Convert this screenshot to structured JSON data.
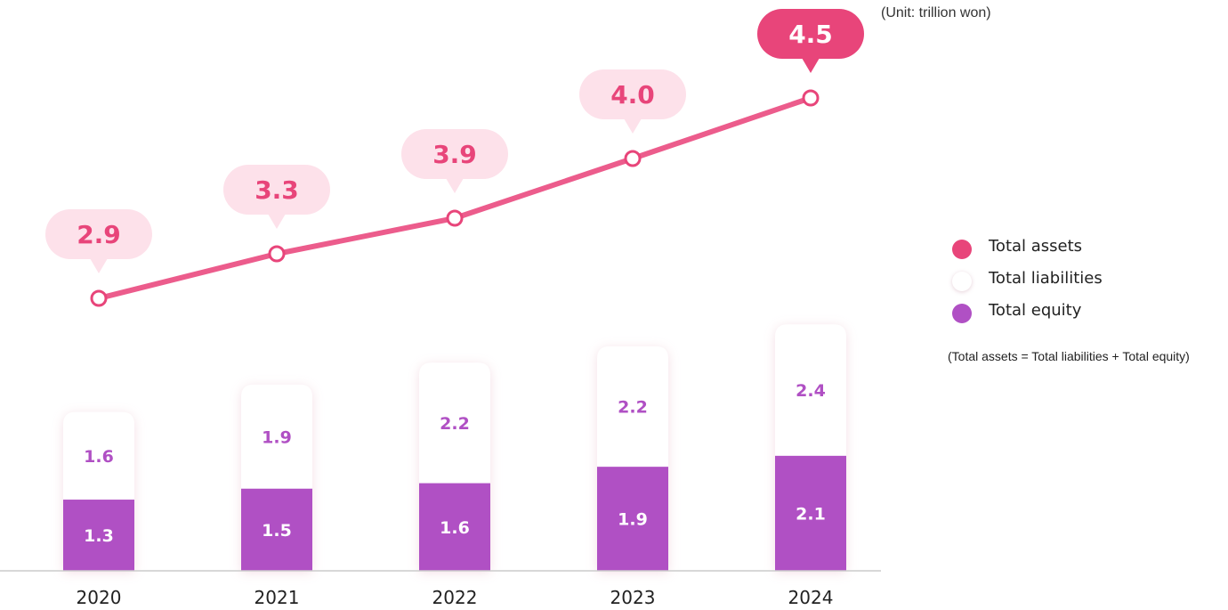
{
  "unit_note": "(Unit: trillion won)",
  "colors": {
    "assets": "#e8457a",
    "assets_line": "#ec5c8c",
    "assets_bubble": "#fde1ea",
    "liabilities": "#ffffff",
    "equity": "#b050c4",
    "liability_label": "#b050c4",
    "axis": "#cccccc"
  },
  "legend": [
    {
      "label": "Total assets",
      "color": "#e8457a"
    },
    {
      "label": "Total liabilities",
      "color": "#ffffff"
    },
    {
      "label": "Total equity",
      "color": "#b050c4"
    }
  ],
  "formula": "(Total assets = Total liabilities + Total equity)",
  "chart_data": {
    "type": "bar",
    "stacked": true,
    "categories": [
      "2020",
      "2021",
      "2022",
      "2023",
      "2024"
    ],
    "series": [
      {
        "name": "Total equity",
        "kind": "bar",
        "values": [
          1.3,
          1.5,
          1.6,
          1.9,
          2.1
        ],
        "labels": [
          "1.3",
          "1.5",
          "1.6",
          "1.9",
          "2.1"
        ]
      },
      {
        "name": "Total liabilities",
        "kind": "bar",
        "values": [
          1.6,
          1.9,
          2.2,
          2.2,
          2.4
        ],
        "labels": [
          "1.6",
          "1.9",
          "2.2",
          "2.2",
          "2.4"
        ]
      },
      {
        "name": "Total assets",
        "kind": "line",
        "values": [
          2.9,
          3.3,
          3.9,
          4.0,
          4.5
        ],
        "labels": [
          "2.9",
          "3.3",
          "3.9",
          "4.0",
          "4.5"
        ]
      }
    ],
    "title": "",
    "xlabel": "",
    "ylabel": "",
    "ylim": [
      0,
      4.5
    ],
    "grid": false,
    "legend_position": "right"
  }
}
